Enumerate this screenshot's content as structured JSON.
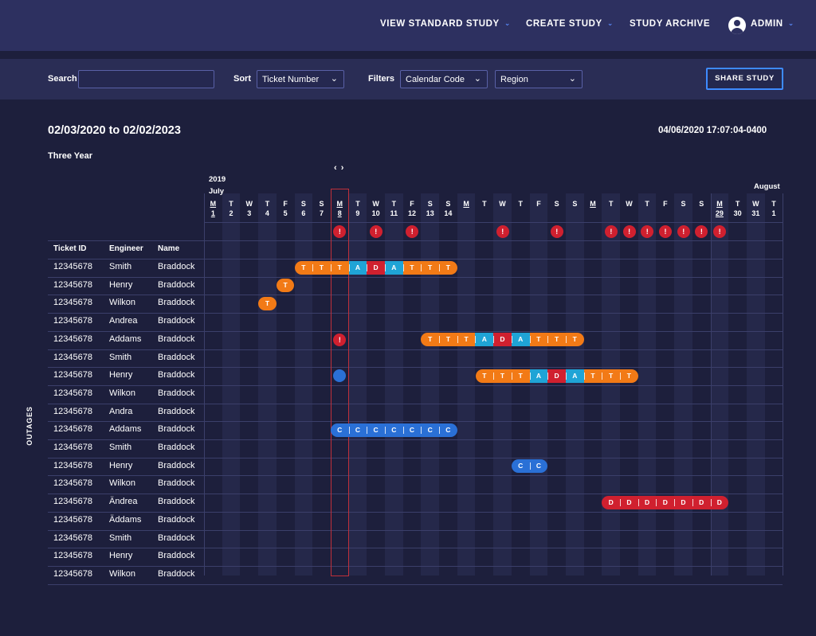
{
  "nav": {
    "items": [
      {
        "label": "VIEW STANDARD STUDY",
        "has_dropdown": true
      },
      {
        "label": "CREATE STUDY",
        "has_dropdown": true
      },
      {
        "label": "STUDY ARCHIVE",
        "has_dropdown": false
      },
      {
        "label": "ADMIN",
        "has_dropdown": true
      }
    ],
    "user_icon": "user-circle-icon"
  },
  "filters": {
    "search_label": "Search",
    "search_value": "",
    "sort_label": "Sort",
    "sort_value": "Ticket Number",
    "filters_label": "Filters",
    "filter1_value": "Calendar Code",
    "filter2_value": "Region",
    "share_label": "SHARE STUDY"
  },
  "study": {
    "date_range": "02/03/2020 to 02/02/2023",
    "timestamp": "04/06/2020 17:07:04-0400",
    "period": "Three Year",
    "nav_arrows": "‹ ›",
    "year": "2019",
    "month": "July",
    "next_month": "August"
  },
  "days": [
    {
      "d": "M",
      "n": "1",
      "mon": true
    },
    {
      "d": "T",
      "n": "2"
    },
    {
      "d": "W",
      "n": "3"
    },
    {
      "d": "T",
      "n": "4"
    },
    {
      "d": "F",
      "n": "5"
    },
    {
      "d": "S",
      "n": "6"
    },
    {
      "d": "S",
      "n": "7"
    },
    {
      "d": "M",
      "n": "8",
      "mon": true
    },
    {
      "d": "T",
      "n": "9"
    },
    {
      "d": "W",
      "n": "10"
    },
    {
      "d": "T",
      "n": "11"
    },
    {
      "d": "F",
      "n": "12"
    },
    {
      "d": "S",
      "n": "13"
    },
    {
      "d": "S",
      "n": "14"
    },
    {
      "d": "M",
      "n": "",
      "mon": true
    },
    {
      "d": "T",
      "n": ""
    },
    {
      "d": "W",
      "n": ""
    },
    {
      "d": "T",
      "n": ""
    },
    {
      "d": "F",
      "n": ""
    },
    {
      "d": "S",
      "n": ""
    },
    {
      "d": "S",
      "n": ""
    },
    {
      "d": "M",
      "n": "",
      "mon": true
    },
    {
      "d": "T",
      "n": ""
    },
    {
      "d": "W",
      "n": ""
    },
    {
      "d": "T",
      "n": ""
    },
    {
      "d": "F",
      "n": ""
    },
    {
      "d": "S",
      "n": ""
    },
    {
      "d": "S",
      "n": ""
    },
    {
      "d": "M",
      "n": "29",
      "mon": true
    },
    {
      "d": "T",
      "n": "30"
    },
    {
      "d": "W",
      "n": "31"
    },
    {
      "d": "T",
      "n": "1"
    }
  ],
  "weekend_columns": [
    1,
    3,
    5,
    8,
    10,
    12,
    14,
    16,
    18,
    20,
    22,
    24,
    26,
    28,
    30
  ],
  "alert_columns": [
    7,
    9,
    11,
    16,
    19,
    22,
    23,
    24,
    25,
    26,
    27,
    28
  ],
  "alert_symbol": "!",
  "table": {
    "headers": [
      "Ticket ID",
      "Engineer",
      "Name"
    ],
    "section_label": "OUTAGES",
    "rows": [
      [
        "12345678",
        "Smith",
        "Braddock"
      ],
      [
        "12345678",
        "Henry",
        "Braddock"
      ],
      [
        "12345678",
        "Wilkon",
        "Braddock"
      ],
      [
        "12345678",
        "Andrea",
        "Braddock"
      ],
      [
        "12345678",
        "Addams",
        "Braddock"
      ],
      [
        "12345678",
        "Smith",
        "Braddock"
      ],
      [
        "12345678",
        "Henry",
        "Braddock"
      ],
      [
        "12345678",
        "Wilkon",
        "Braddock"
      ],
      [
        "12345678",
        " Andra",
        "Braddock"
      ],
      [
        "12345678",
        "Addams",
        "Braddock"
      ],
      [
        "12345678",
        "Smith",
        "Braddock"
      ],
      [
        "12345678",
        "Henry",
        "Braddock"
      ],
      [
        "12345678",
        "Wilkon",
        "Braddock"
      ],
      [
        "12345678",
        "Ändrea",
        "Braddock"
      ],
      [
        "12345678",
        "Äddams",
        "Braddock"
      ],
      [
        "12345678",
        "Smith",
        "Braddock"
      ],
      [
        "12345678",
        "Henry",
        "Braddock"
      ],
      [
        "12345678",
        "Wilkon",
        "Braddock"
      ]
    ]
  },
  "bars": [
    {
      "row": 0,
      "start": 5,
      "codes": [
        "T",
        "T",
        "T",
        "A",
        "D",
        "A",
        "T",
        "T",
        "T"
      ]
    },
    {
      "row": 1,
      "start": 4,
      "codes": [
        "T"
      ]
    },
    {
      "row": 2,
      "start": 3,
      "codes": [
        "T"
      ]
    },
    {
      "row": 4,
      "start": 12,
      "codes": [
        "T",
        "T",
        "T",
        "A",
        "D",
        "A",
        "T",
        "T",
        "T"
      ]
    },
    {
      "row": 6,
      "start": 15,
      "codes": [
        "T",
        "T",
        "T",
        "A",
        "D",
        "A",
        "T",
        "T",
        "T"
      ]
    },
    {
      "row": 9,
      "start": 7,
      "codes": [
        "C",
        "C",
        "C",
        "C",
        "C",
        "C",
        "C"
      ]
    },
    {
      "row": 11,
      "start": 17,
      "codes": [
        "C",
        "C"
      ]
    },
    {
      "row": 13,
      "start": 22,
      "codes": [
        "D",
        "D",
        "D",
        "D",
        "D",
        "D",
        "D"
      ]
    }
  ],
  "row_markers": [
    {
      "row": 4,
      "col": 7,
      "type": "alert",
      "symbol": "!"
    },
    {
      "row": 6,
      "col": 7,
      "type": "dot"
    }
  ],
  "colors": {
    "T": "#f27a16",
    "A": "#1fa4d6",
    "D": "#d0202f",
    "C": "#2a70d6",
    "alert": "#d0202f",
    "accent": "#3e8bff"
  }
}
